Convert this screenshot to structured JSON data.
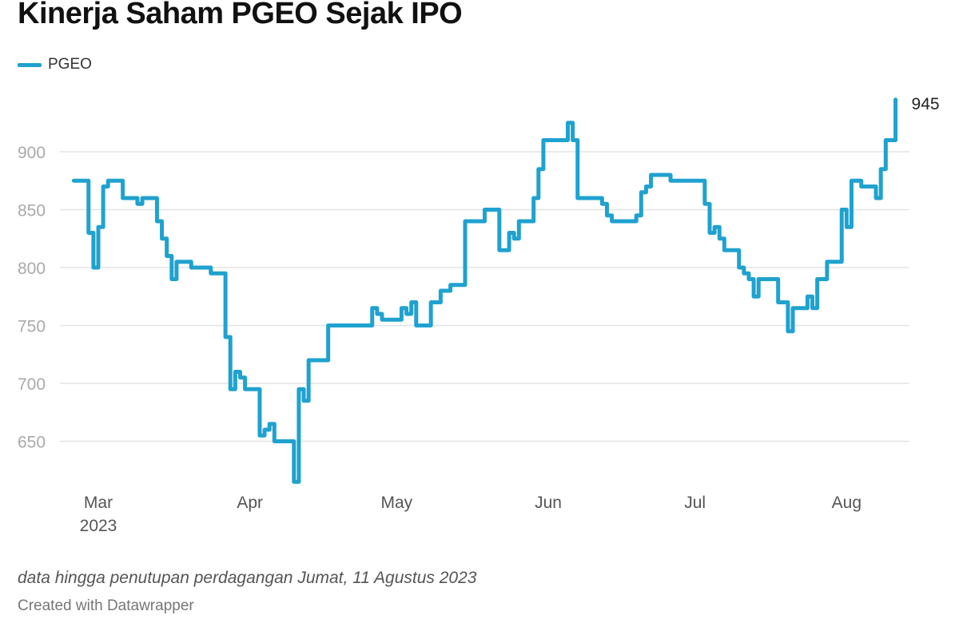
{
  "chart_data": {
    "type": "line",
    "interpolation": "step-after",
    "title": "Kinerja Saham PGEO Sejak IPO",
    "xlabel": "",
    "ylabel": "",
    "ylim": [
      605,
      950
    ],
    "y_ticks": [
      650,
      700,
      750,
      800,
      850,
      900
    ],
    "x_ticks": [
      {
        "date": "2023-03-01",
        "label": "Mar",
        "sublabel": "2023"
      },
      {
        "date": "2023-04-01",
        "label": "Apr",
        "sublabel": ""
      },
      {
        "date": "2023-05-01",
        "label": "May",
        "sublabel": ""
      },
      {
        "date": "2023-06-01",
        "label": "Jun",
        "sublabel": ""
      },
      {
        "date": "2023-07-01",
        "label": "Jul",
        "sublabel": ""
      },
      {
        "date": "2023-08-01",
        "label": "Aug",
        "sublabel": ""
      }
    ],
    "grid": true,
    "legend": "top-left",
    "series": [
      {
        "name": "PGEO",
        "color": "#1fa2cf",
        "end_label": "945",
        "points": [
          [
            "2023-02-24",
            875
          ],
          [
            "2023-02-27",
            830
          ],
          [
            "2023-02-28",
            800
          ],
          [
            "2023-03-01",
            835
          ],
          [
            "2023-03-02",
            870
          ],
          [
            "2023-03-03",
            875
          ],
          [
            "2023-03-06",
            860
          ],
          [
            "2023-03-09",
            855
          ],
          [
            "2023-03-10",
            860
          ],
          [
            "2023-03-13",
            840
          ],
          [
            "2023-03-14",
            825
          ],
          [
            "2023-03-15",
            810
          ],
          [
            "2023-03-16",
            790
          ],
          [
            "2023-03-17",
            805
          ],
          [
            "2023-03-20",
            800
          ],
          [
            "2023-03-24",
            795
          ],
          [
            "2023-03-27",
            740
          ],
          [
            "2023-03-28",
            695
          ],
          [
            "2023-03-29",
            710
          ],
          [
            "2023-03-30",
            705
          ],
          [
            "2023-03-31",
            695
          ],
          [
            "2023-04-03",
            655
          ],
          [
            "2023-04-04",
            660
          ],
          [
            "2023-04-05",
            665
          ],
          [
            "2023-04-06",
            650
          ],
          [
            "2023-04-10",
            615
          ],
          [
            "2023-04-11",
            695
          ],
          [
            "2023-04-12",
            685
          ],
          [
            "2023-04-13",
            720
          ],
          [
            "2023-04-17",
            750
          ],
          [
            "2023-04-26",
            765
          ],
          [
            "2023-04-27",
            760
          ],
          [
            "2023-04-28",
            755
          ],
          [
            "2023-05-02",
            765
          ],
          [
            "2023-05-03",
            760
          ],
          [
            "2023-05-04",
            770
          ],
          [
            "2023-05-05",
            750
          ],
          [
            "2023-05-08",
            770
          ],
          [
            "2023-05-10",
            780
          ],
          [
            "2023-05-12",
            785
          ],
          [
            "2023-05-15",
            840
          ],
          [
            "2023-05-19",
            850
          ],
          [
            "2023-05-22",
            815
          ],
          [
            "2023-05-24",
            830
          ],
          [
            "2023-05-25",
            825
          ],
          [
            "2023-05-26",
            840
          ],
          [
            "2023-05-29",
            860
          ],
          [
            "2023-05-30",
            885
          ],
          [
            "2023-05-31",
            910
          ],
          [
            "2023-06-05",
            925
          ],
          [
            "2023-06-06",
            910
          ],
          [
            "2023-06-07",
            860
          ],
          [
            "2023-06-12",
            855
          ],
          [
            "2023-06-13",
            845
          ],
          [
            "2023-06-14",
            840
          ],
          [
            "2023-06-19",
            845
          ],
          [
            "2023-06-20",
            865
          ],
          [
            "2023-06-21",
            870
          ],
          [
            "2023-06-22",
            880
          ],
          [
            "2023-06-26",
            875
          ],
          [
            "2023-07-03",
            855
          ],
          [
            "2023-07-04",
            830
          ],
          [
            "2023-07-05",
            835
          ],
          [
            "2023-07-06",
            825
          ],
          [
            "2023-07-07",
            815
          ],
          [
            "2023-07-10",
            800
          ],
          [
            "2023-07-11",
            795
          ],
          [
            "2023-07-12",
            790
          ],
          [
            "2023-07-13",
            775
          ],
          [
            "2023-07-14",
            790
          ],
          [
            "2023-07-18",
            770
          ],
          [
            "2023-07-20",
            745
          ],
          [
            "2023-07-21",
            765
          ],
          [
            "2023-07-24",
            775
          ],
          [
            "2023-07-25",
            765
          ],
          [
            "2023-07-26",
            790
          ],
          [
            "2023-07-28",
            805
          ],
          [
            "2023-07-31",
            850
          ],
          [
            "2023-08-01",
            835
          ],
          [
            "2023-08-02",
            875
          ],
          [
            "2023-08-04",
            870
          ],
          [
            "2023-08-07",
            860
          ],
          [
            "2023-08-08",
            885
          ],
          [
            "2023-08-09",
            910
          ],
          [
            "2023-08-11",
            945
          ]
        ]
      }
    ]
  },
  "notes": "data hingga penutupan perdagangan Jumat, 11 Agustus 2023",
  "credit": "Created with Datawrapper"
}
